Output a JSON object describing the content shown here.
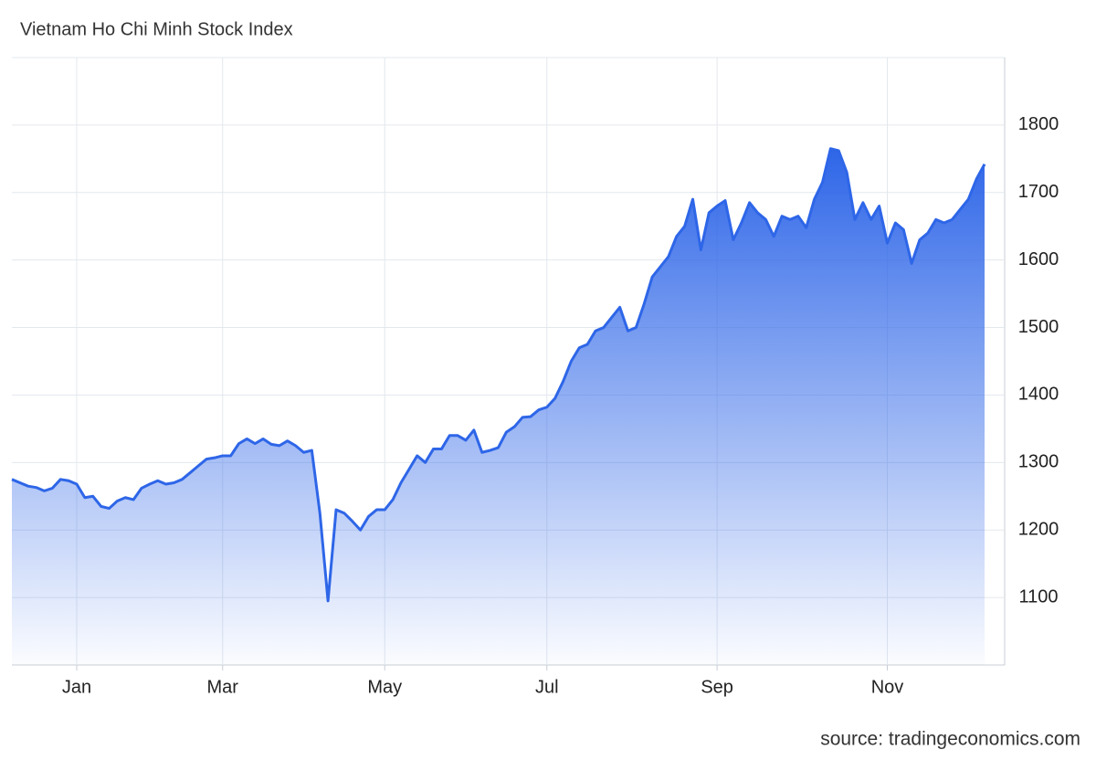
{
  "chart_data": {
    "type": "area",
    "title": "Vietnam Ho Chi Minh Stock Index",
    "source": "source: tradingeconomics.com",
    "categories": [
      null,
      null,
      null,
      null,
      null,
      null,
      null,
      null,
      "Jan",
      null,
      null,
      null,
      null,
      null,
      null,
      null,
      null,
      null,
      null,
      null,
      null,
      null,
      null,
      null,
      null,
      null,
      "Mar",
      null,
      null,
      null,
      null,
      null,
      null,
      null,
      null,
      null,
      null,
      null,
      null,
      null,
      null,
      null,
      null,
      null,
      null,
      null,
      "May",
      null,
      null,
      null,
      null,
      null,
      null,
      null,
      null,
      null,
      null,
      null,
      null,
      null,
      null,
      null,
      null,
      null,
      null,
      null,
      "Jul",
      null,
      null,
      null,
      null,
      null,
      null,
      null,
      null,
      null,
      null,
      null,
      null,
      null,
      null,
      null,
      null,
      null,
      null,
      null,
      null,
      "Sep",
      null,
      null,
      null,
      null,
      null,
      null,
      null,
      null,
      null,
      null,
      null,
      null,
      null,
      null,
      null,
      null,
      null,
      null,
      null,
      null,
      "Nov",
      null,
      null,
      null,
      null,
      null,
      null,
      null,
      null,
      null,
      null,
      null,
      null
    ],
    "series": [
      {
        "name": "Vietnam Ho Chi Minh Stock Index",
        "color": "#2e66e8",
        "values": [
          1275,
          1270,
          1265,
          1263,
          1258,
          1262,
          1275,
          1273,
          1268,
          1248,
          1250,
          1235,
          1232,
          1243,
          1248,
          1245,
          1262,
          1268,
          1273,
          1268,
          1270,
          1275,
          1285,
          1295,
          1305,
          1307,
          1310,
          1310,
          1328,
          1335,
          1328,
          1335,
          1327,
          1325,
          1332,
          1325,
          1315,
          1318,
          1225,
          1095,
          1230,
          1225,
          1213,
          1200,
          1220,
          1230,
          1230,
          1245,
          1270,
          1290,
          1310,
          1300,
          1320,
          1320,
          1340,
          1340,
          1333,
          1348,
          1315,
          1318,
          1322,
          1345,
          1353,
          1367,
          1368,
          1378,
          1382,
          1395,
          1420,
          1450,
          1470,
          1475,
          1495,
          1500,
          1515,
          1530,
          1495,
          1500,
          1535,
          1575,
          1590,
          1605,
          1635,
          1650,
          1690,
          1615,
          1670,
          1680,
          1688,
          1630,
          1655,
          1685,
          1670,
          1660,
          1635,
          1665,
          1660,
          1665,
          1648,
          1690,
          1715,
          1765,
          1762,
          1730,
          1660,
          1685,
          1660,
          1680,
          1625,
          1655,
          1645,
          1595,
          1630,
          1640,
          1660,
          1655,
          1660,
          1675,
          1690,
          1720,
          1742
        ]
      }
    ],
    "ylim": [
      1000,
      1900
    ],
    "yticks": [
      1100,
      1200,
      1300,
      1400,
      1500,
      1600,
      1700,
      1800
    ],
    "grid": true
  }
}
